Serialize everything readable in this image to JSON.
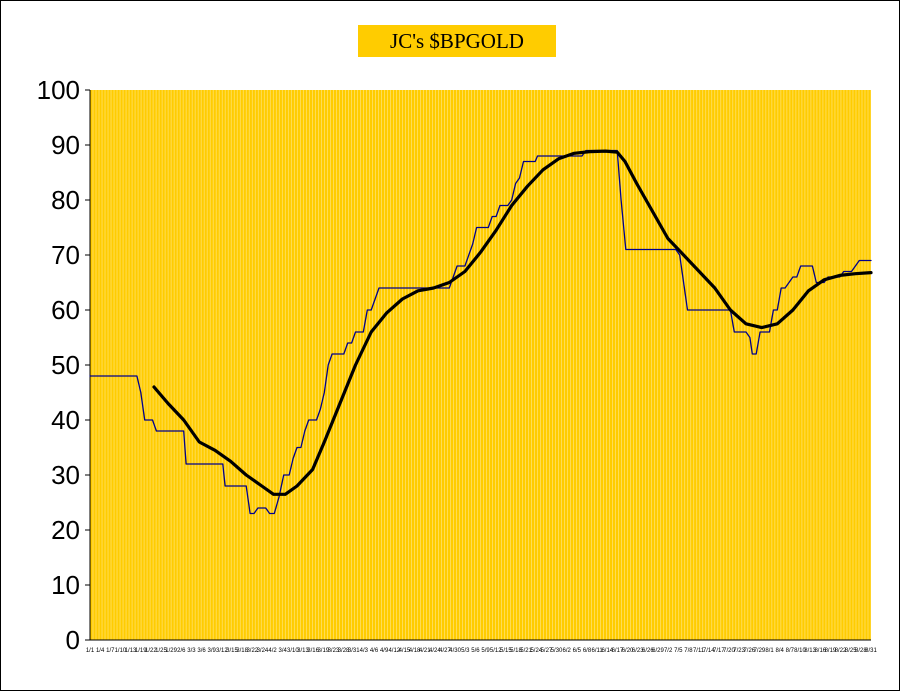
{
  "chart_data": {
    "type": "line",
    "title": "JC's $BPGOLD",
    "xlabel": "",
    "ylabel": "",
    "ylim": [
      0,
      100
    ],
    "yticks": [
      0,
      10,
      20,
      30,
      40,
      50,
      60,
      70,
      80,
      90,
      100
    ],
    "grid": "vertical",
    "x_tick_labels": [
      "1/1",
      "1/4",
      "1/7",
      "1/10",
      "1/13",
      "1/19",
      "1/22",
      "1/25",
      "1/29",
      "2/6",
      "3/3",
      "3/6",
      "3/9",
      "3/12",
      "3/15",
      "3/18",
      "3/22",
      "3/24",
      "4/2",
      "3/4",
      "3/10",
      "3/13",
      "3/16",
      "3/19",
      "3/23",
      "3/28",
      "3/31",
      "4/3",
      "4/6",
      "4/9",
      "4/12",
      "4/15",
      "4/18",
      "4/21",
      "4/24",
      "4/27",
      "4/30",
      "5/3",
      "5/6",
      "5/9",
      "5/12",
      "5/15",
      "5/18",
      "5/21",
      "5/24",
      "5/27",
      "5/30",
      "6/2",
      "6/5",
      "6/8",
      "6/11",
      "6/14",
      "6/17",
      "6/20",
      "6/23",
      "6/26",
      "6/29",
      "7/2",
      "7/5",
      "7/8",
      "7/11",
      "7/14",
      "7/17",
      "7/20",
      "7/23",
      "7/26",
      "7/29",
      "8/1",
      "8/4",
      "8/7",
      "8/10",
      "8/13",
      "8/16",
      "8/19",
      "8/22",
      "8/25",
      "8/28",
      "8/31"
    ],
    "plot_bg": "#ffcc00",
    "grid_color": "#ffffff",
    "series": [
      {
        "style": "thin",
        "color": "#00008b",
        "points": [
          [
            0,
            48
          ],
          [
            6,
            48
          ],
          [
            6.5,
            45
          ],
          [
            7,
            40
          ],
          [
            8,
            40
          ],
          [
            8.5,
            38
          ],
          [
            12,
            38
          ],
          [
            12.3,
            32
          ],
          [
            17,
            32
          ],
          [
            17.3,
            28
          ],
          [
            20,
            28
          ],
          [
            20.5,
            23
          ],
          [
            21,
            23
          ],
          [
            21.5,
            24
          ],
          [
            22.5,
            24
          ],
          [
            23,
            23
          ],
          [
            23.6,
            23
          ],
          [
            24.2,
            26
          ],
          [
            24.8,
            30
          ],
          [
            25.5,
            30
          ],
          [
            26,
            33
          ],
          [
            26.5,
            35
          ],
          [
            27,
            35
          ],
          [
            27.5,
            38
          ],
          [
            28,
            40
          ],
          [
            29,
            40
          ],
          [
            29.5,
            42
          ],
          [
            30,
            45
          ],
          [
            30.5,
            50
          ],
          [
            31,
            52
          ],
          [
            32.5,
            52
          ],
          [
            33,
            54
          ],
          [
            33.5,
            54
          ],
          [
            34,
            56
          ],
          [
            35,
            56
          ],
          [
            35.5,
            60
          ],
          [
            36,
            60
          ],
          [
            36.5,
            62
          ],
          [
            37,
            64
          ],
          [
            46,
            64
          ],
          [
            46.5,
            66
          ],
          [
            47,
            68
          ],
          [
            48,
            68
          ],
          [
            48.5,
            70
          ],
          [
            49,
            72
          ],
          [
            49.5,
            75
          ],
          [
            51,
            75
          ],
          [
            51.5,
            77
          ],
          [
            52,
            77
          ],
          [
            52.5,
            79
          ],
          [
            53.5,
            79
          ],
          [
            54,
            80
          ],
          [
            54.5,
            83
          ],
          [
            55,
            84
          ],
          [
            55.5,
            87
          ],
          [
            57,
            87
          ],
          [
            57.3,
            88
          ],
          [
            63,
            88
          ],
          [
            63.5,
            89
          ],
          [
            67.5,
            89
          ],
          [
            68,
            80
          ],
          [
            68.6,
            71
          ],
          [
            75,
            71
          ],
          [
            75.5,
            70
          ],
          [
            76,
            65
          ],
          [
            76.5,
            60
          ],
          [
            82,
            60
          ],
          [
            82.5,
            56
          ],
          [
            84,
            56
          ],
          [
            84.5,
            55
          ],
          [
            84.8,
            52
          ],
          [
            85.3,
            52
          ],
          [
            85.8,
            56
          ],
          [
            87,
            56
          ],
          [
            87.5,
            60
          ],
          [
            88,
            60
          ],
          [
            88.5,
            64
          ],
          [
            89,
            64
          ],
          [
            89.5,
            65
          ],
          [
            90,
            66
          ],
          [
            90.5,
            66
          ],
          [
            91,
            68
          ],
          [
            92.5,
            68
          ],
          [
            93,
            65
          ],
          [
            94,
            65
          ],
          [
            94.5,
            66
          ],
          [
            96,
            66
          ],
          [
            96.5,
            67
          ],
          [
            97.5,
            67
          ],
          [
            98,
            68
          ],
          [
            98.5,
            69
          ],
          [
            100,
            69
          ]
        ]
      },
      {
        "style": "thick",
        "color": "#000000",
        "points": [
          [
            8.2,
            46
          ],
          [
            10,
            43
          ],
          [
            12,
            40
          ],
          [
            14,
            36
          ],
          [
            16,
            34.5
          ],
          [
            18,
            32.5
          ],
          [
            20,
            30
          ],
          [
            22,
            28
          ],
          [
            23.5,
            26.5
          ],
          [
            25,
            26.5
          ],
          [
            26.5,
            28
          ],
          [
            28.5,
            31
          ],
          [
            30,
            36
          ],
          [
            32,
            43
          ],
          [
            34,
            50
          ],
          [
            36,
            56
          ],
          [
            38,
            59.5
          ],
          [
            40,
            62
          ],
          [
            42,
            63.5
          ],
          [
            44,
            64
          ],
          [
            46,
            65
          ],
          [
            48,
            67
          ],
          [
            50,
            70.5
          ],
          [
            52,
            74.5
          ],
          [
            54,
            79
          ],
          [
            56,
            82.5
          ],
          [
            58,
            85.5
          ],
          [
            60,
            87.5
          ],
          [
            62,
            88.5
          ],
          [
            64,
            88.8
          ],
          [
            66,
            88.9
          ],
          [
            67.5,
            88.7
          ],
          [
            68.5,
            87
          ],
          [
            70,
            83
          ],
          [
            72,
            78
          ],
          [
            74,
            73
          ],
          [
            76,
            70
          ],
          [
            78,
            67
          ],
          [
            80,
            64
          ],
          [
            82,
            60
          ],
          [
            84,
            57.5
          ],
          [
            86,
            56.8
          ],
          [
            88,
            57.5
          ],
          [
            90,
            60
          ],
          [
            92,
            63.5
          ],
          [
            94,
            65.5
          ],
          [
            96,
            66.3
          ],
          [
            98,
            66.6
          ],
          [
            100,
            66.8
          ]
        ]
      }
    ]
  }
}
